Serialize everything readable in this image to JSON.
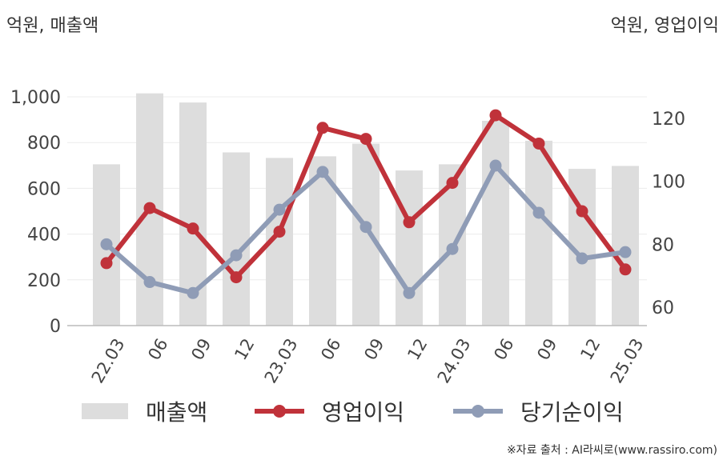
{
  "units": {
    "left": "억원, 매출액",
    "right": "억원, 영업이익"
  },
  "source": "※자료 출처 : AI라씨로(www.rassiro.com)",
  "legend": {
    "revenue": "매출액",
    "operating_profit": "영업이익",
    "net_income": "당기순이익"
  },
  "colors": {
    "revenue": "#dddddd",
    "operating_profit": "#c0323a",
    "net_income": "#8f9cb6"
  },
  "chart_data": {
    "type": "bar",
    "categories": [
      "22.03",
      "06",
      "09",
      "12",
      "23.03",
      "06",
      "09",
      "12",
      "24.03",
      "06",
      "09",
      "12",
      "25.03"
    ],
    "series": [
      {
        "name": "매출액",
        "type": "bar",
        "axis": "left",
        "values": [
          705,
          1015,
          975,
          757,
          733,
          740,
          795,
          678,
          705,
          895,
          808,
          685,
          698
        ]
      },
      {
        "name": "영업이익",
        "type": "line",
        "axis": "right",
        "values": [
          74,
          91.5,
          85,
          69.5,
          84,
          117,
          113.5,
          87,
          99.5,
          121,
          112,
          90.5,
          72
        ]
      },
      {
        "name": "당기순이익",
        "type": "line",
        "axis": "right",
        "values": [
          80,
          68,
          64.5,
          76.5,
          91,
          103,
          85.5,
          64.5,
          78.5,
          105,
          90,
          75.5,
          77.5
        ]
      }
    ],
    "y_left": {
      "ylim": [
        0,
        1000
      ],
      "ticks": [
        0,
        200,
        400,
        600,
        800,
        1000
      ],
      "tick_labels": [
        "0",
        "200",
        "400",
        "600",
        "800",
        "1,000"
      ]
    },
    "y_right": {
      "ylim": [
        60,
        120
      ],
      "ticks": [
        60,
        80,
        100,
        120
      ],
      "tick_labels": [
        "60",
        "80",
        "100",
        "120"
      ]
    },
    "grid": true,
    "legend_position": "bottom"
  }
}
